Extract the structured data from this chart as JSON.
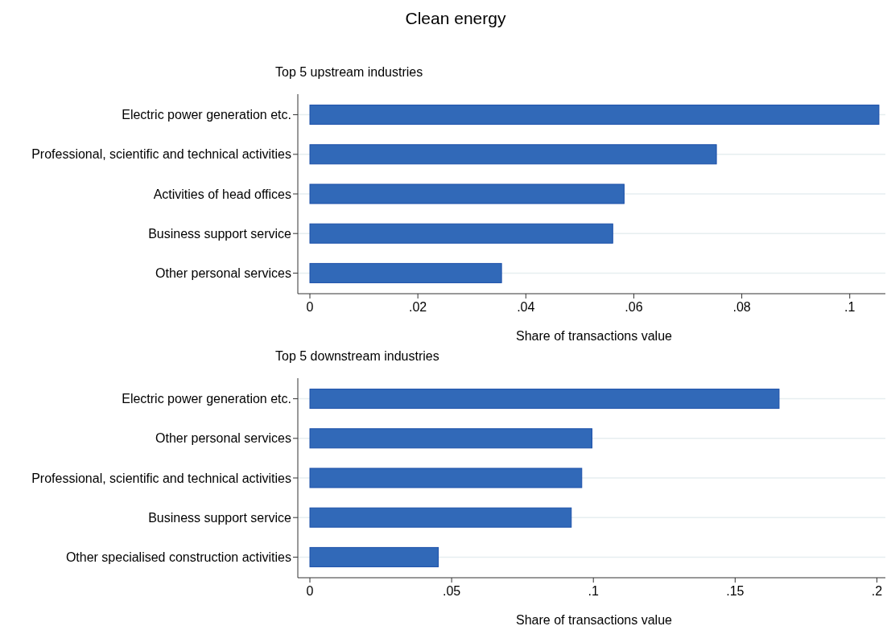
{
  "chart_data": [
    {
      "type": "bar",
      "orientation": "horizontal",
      "title": "Clean energy",
      "subtitle": "Top 5 upstream industries",
      "xlabel": "Share of transactions value",
      "categories": [
        "Electric power generation etc.",
        "Professional, scientific and technical activities",
        "Activities of head offices",
        "Business support service",
        "Other personal services"
      ],
      "values": [
        0.1054,
        0.0753,
        0.0582,
        0.0561,
        0.0355
      ],
      "color": "#3169b8",
      "xlim": [
        0,
        0.1066
      ],
      "xticks": [
        {
          "value": 0,
          "label": "0"
        },
        {
          "value": 0.02,
          "label": ".02"
        },
        {
          "value": 0.04,
          "label": ".04"
        },
        {
          "value": 0.06,
          "label": ".06"
        },
        {
          "value": 0.08,
          "label": ".08"
        },
        {
          "value": 0.1,
          "label": ".1"
        }
      ],
      "grid": "y"
    },
    {
      "type": "bar",
      "orientation": "horizontal",
      "subtitle": "Top 5 downstream industries",
      "xlabel": "Share of transactions value",
      "categories": [
        "Electric power generation etc.",
        "Other personal services",
        "Professional, scientific and technical activities",
        "Business support service",
        "Other specialised construction activities"
      ],
      "values": [
        0.1655,
        0.0995,
        0.0959,
        0.0922,
        0.0453
      ],
      "color": "#3169b8",
      "xlim": [
        0,
        0.203
      ],
      "xticks": [
        {
          "value": 0,
          "label": "0"
        },
        {
          "value": 0.05,
          "label": ".05"
        },
        {
          "value": 0.1,
          "label": ".1"
        },
        {
          "value": 0.15,
          "label": ".15"
        },
        {
          "value": 0.2,
          "label": ".2"
        }
      ],
      "grid": "y"
    }
  ]
}
